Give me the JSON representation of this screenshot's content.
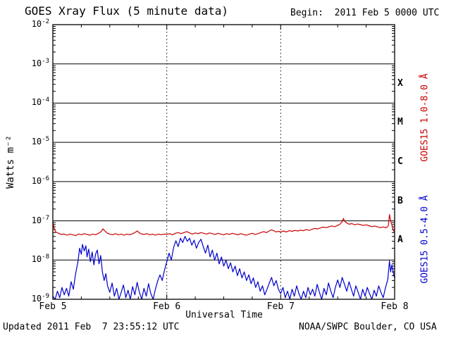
{
  "header": {
    "title": "GOES Xray Flux (5 minute data)",
    "begin_label": "Begin:  2011 Feb 5 0000 UTC"
  },
  "footer": {
    "updated": "Updated 2011 Feb  7 23:55:12 UTC",
    "source": "NOAA/SWPC Boulder, CO USA"
  },
  "chart_data": {
    "type": "line",
    "title": "GOES Xray Flux (5 minute data)",
    "xlabel": "Universal Time",
    "ylabel": "Watts m⁻²",
    "x_epoch": "2011 Feb 5 0000 UTC",
    "x_unit": "days since begin",
    "xlim_days": [
      0,
      3
    ],
    "ylim": [
      1e-09,
      0.01
    ],
    "yscale": "log",
    "xtick_labels": [
      "Feb 5",
      "Feb 6",
      "Feb 7",
      "Feb 8"
    ],
    "xticks_days": [
      0,
      1,
      2,
      3
    ],
    "ytick_exponents": [
      -2,
      -3,
      -4,
      -5,
      -6,
      -7,
      -8,
      -9
    ],
    "grid": {
      "horizontal": "solid lines at each decade",
      "vertical": "dotted lines at day boundaries"
    },
    "legend_position": "right-axis-vertical",
    "flare_classes": [
      {
        "label": "X",
        "log_center": -3.5
      },
      {
        "label": "M",
        "log_center": -4.5
      },
      {
        "label": "C",
        "log_center": -5.5
      },
      {
        "label": "B",
        "log_center": -6.5
      },
      {
        "label": "A",
        "log_center": -7.5
      }
    ],
    "series": [
      {
        "name": "GOES15 1.0-8.0 Å",
        "color": "#cc0000",
        "points": [
          [
            0.0,
            9.5e-08
          ],
          [
            0.01,
            6.5e-08
          ],
          [
            0.025,
            5.2e-08
          ],
          [
            0.05,
            4.8e-08
          ],
          [
            0.075,
            4.5e-08
          ],
          [
            0.1,
            4.6e-08
          ],
          [
            0.125,
            4.3e-08
          ],
          [
            0.15,
            4.6e-08
          ],
          [
            0.175,
            4.4e-08
          ],
          [
            0.2,
            4.2e-08
          ],
          [
            0.225,
            4.6e-08
          ],
          [
            0.25,
            4.4e-08
          ],
          [
            0.275,
            4.7e-08
          ],
          [
            0.3,
            4.5e-08
          ],
          [
            0.325,
            4.3e-08
          ],
          [
            0.35,
            4.6e-08
          ],
          [
            0.375,
            4.4e-08
          ],
          [
            0.4,
            4.8e-08
          ],
          [
            0.42,
            5.2e-08
          ],
          [
            0.44,
            6.2e-08
          ],
          [
            0.46,
            5.4e-08
          ],
          [
            0.48,
            4.8e-08
          ],
          [
            0.5,
            4.6e-08
          ],
          [
            0.525,
            4.4e-08
          ],
          [
            0.55,
            4.7e-08
          ],
          [
            0.575,
            4.4e-08
          ],
          [
            0.6,
            4.6e-08
          ],
          [
            0.625,
            4.3e-08
          ],
          [
            0.65,
            4.6e-08
          ],
          [
            0.675,
            4.4e-08
          ],
          [
            0.7,
            4.7e-08
          ],
          [
            0.72,
            5e-08
          ],
          [
            0.74,
            5.5e-08
          ],
          [
            0.76,
            4.9e-08
          ],
          [
            0.78,
            4.6e-08
          ],
          [
            0.8,
            4.5e-08
          ],
          [
            0.825,
            4.7e-08
          ],
          [
            0.85,
            4.4e-08
          ],
          [
            0.875,
            4.6e-08
          ],
          [
            0.9,
            4.3e-08
          ],
          [
            0.925,
            4.6e-08
          ],
          [
            0.95,
            4.4e-08
          ],
          [
            0.975,
            4.6e-08
          ],
          [
            1.0,
            4.5e-08
          ],
          [
            1.025,
            4.7e-08
          ],
          [
            1.05,
            4.4e-08
          ],
          [
            1.075,
            4.8e-08
          ],
          [
            1.1,
            5e-08
          ],
          [
            1.125,
            4.7e-08
          ],
          [
            1.15,
            5e-08
          ],
          [
            1.175,
            5.3e-08
          ],
          [
            1.2,
            4.9e-08
          ],
          [
            1.225,
            4.6e-08
          ],
          [
            1.25,
            4.9e-08
          ],
          [
            1.275,
            4.7e-08
          ],
          [
            1.3,
            5e-08
          ],
          [
            1.325,
            4.8e-08
          ],
          [
            1.35,
            4.6e-08
          ],
          [
            1.375,
            4.9e-08
          ],
          [
            1.4,
            4.7e-08
          ],
          [
            1.425,
            4.5e-08
          ],
          [
            1.45,
            4.8e-08
          ],
          [
            1.475,
            4.6e-08
          ],
          [
            1.5,
            4.4e-08
          ],
          [
            1.525,
            4.7e-08
          ],
          [
            1.55,
            4.5e-08
          ],
          [
            1.575,
            4.8e-08
          ],
          [
            1.6,
            4.6e-08
          ],
          [
            1.625,
            4.4e-08
          ],
          [
            1.65,
            4.7e-08
          ],
          [
            1.675,
            4.5e-08
          ],
          [
            1.7,
            4.3e-08
          ],
          [
            1.725,
            4.6e-08
          ],
          [
            1.75,
            4.8e-08
          ],
          [
            1.775,
            4.5e-08
          ],
          [
            1.8,
            4.7e-08
          ],
          [
            1.825,
            5e-08
          ],
          [
            1.85,
            5.3e-08
          ],
          [
            1.875,
            5e-08
          ],
          [
            1.9,
            5.5e-08
          ],
          [
            1.92,
            5.9e-08
          ],
          [
            1.94,
            5.6e-08
          ],
          [
            1.96,
            5.2e-08
          ],
          [
            1.98,
            5.4e-08
          ],
          [
            2.0,
            5.2e-08
          ],
          [
            2.025,
            5.5e-08
          ],
          [
            2.05,
            5.2e-08
          ],
          [
            2.075,
            5.6e-08
          ],
          [
            2.1,
            5.4e-08
          ],
          [
            2.125,
            5.7e-08
          ],
          [
            2.15,
            5.5e-08
          ],
          [
            2.175,
            5.8e-08
          ],
          [
            2.2,
            5.6e-08
          ],
          [
            2.225,
            6e-08
          ],
          [
            2.25,
            5.7e-08
          ],
          [
            2.275,
            6.1e-08
          ],
          [
            2.3,
            6.4e-08
          ],
          [
            2.325,
            6.2e-08
          ],
          [
            2.35,
            6.6e-08
          ],
          [
            2.375,
            6.9e-08
          ],
          [
            2.4,
            6.7e-08
          ],
          [
            2.425,
            7.1e-08
          ],
          [
            2.45,
            7.4e-08
          ],
          [
            2.475,
            7.1e-08
          ],
          [
            2.5,
            7.6e-08
          ],
          [
            2.52,
            8.2e-08
          ],
          [
            2.54,
            9.5e-08
          ],
          [
            2.55,
            1.15e-07
          ],
          [
            2.56,
            9.8e-08
          ],
          [
            2.58,
            8.8e-08
          ],
          [
            2.6,
            8.2e-08
          ],
          [
            2.625,
            8.5e-08
          ],
          [
            2.65,
            7.9e-08
          ],
          [
            2.675,
            8.3e-08
          ],
          [
            2.7,
            8e-08
          ],
          [
            2.725,
            7.6e-08
          ],
          [
            2.75,
            7.9e-08
          ],
          [
            2.775,
            7.5e-08
          ],
          [
            2.8,
            7.1e-08
          ],
          [
            2.825,
            7.4e-08
          ],
          [
            2.85,
            7e-08
          ],
          [
            2.875,
            6.7e-08
          ],
          [
            2.9,
            7e-08
          ],
          [
            2.925,
            6.6e-08
          ],
          [
            2.945,
            7.5e-08
          ],
          [
            2.955,
            1.45e-07
          ],
          [
            2.965,
            1e-07
          ],
          [
            2.975,
            8e-08
          ],
          [
            2.985,
            6e-08
          ],
          [
            3.0,
            5e-08
          ]
        ]
      },
      {
        "name": "GOES15 0.5-4.0 Å",
        "color": "#0000cc",
        "points": [
          [
            0.0,
            1.2e-09
          ],
          [
            0.02,
            1e-09
          ],
          [
            0.04,
            1.6e-09
          ],
          [
            0.06,
            1.1e-09
          ],
          [
            0.08,
            2e-09
          ],
          [
            0.1,
            1.3e-09
          ],
          [
            0.12,
            1.9e-09
          ],
          [
            0.14,
            1.2e-09
          ],
          [
            0.16,
            2.8e-09
          ],
          [
            0.18,
            1.8e-09
          ],
          [
            0.2,
            4.5e-09
          ],
          [
            0.22,
            9e-09
          ],
          [
            0.235,
            2e-08
          ],
          [
            0.25,
            1.4e-08
          ],
          [
            0.26,
            2.5e-08
          ],
          [
            0.275,
            1.7e-08
          ],
          [
            0.29,
            2.3e-08
          ],
          [
            0.3,
            1.2e-08
          ],
          [
            0.315,
            1.9e-08
          ],
          [
            0.33,
            9e-09
          ],
          [
            0.345,
            1.6e-08
          ],
          [
            0.36,
            7.5e-09
          ],
          [
            0.375,
            1.4e-08
          ],
          [
            0.39,
            1.8e-08
          ],
          [
            0.405,
            8e-09
          ],
          [
            0.42,
            1.3e-08
          ],
          [
            0.435,
            5e-09
          ],
          [
            0.45,
            3e-09
          ],
          [
            0.465,
            4.5e-09
          ],
          [
            0.48,
            2.2e-09
          ],
          [
            0.5,
            1.5e-09
          ],
          [
            0.52,
            2.6e-09
          ],
          [
            0.54,
            1.2e-09
          ],
          [
            0.56,
            1.9e-09
          ],
          [
            0.58,
            1e-09
          ],
          [
            0.6,
            1.5e-09
          ],
          [
            0.62,
            2.3e-09
          ],
          [
            0.64,
            1.1e-09
          ],
          [
            0.66,
            1.7e-09
          ],
          [
            0.68,
            1e-09
          ],
          [
            0.7,
            2.1e-09
          ],
          [
            0.72,
            1.3e-09
          ],
          [
            0.74,
            2.7e-09
          ],
          [
            0.76,
            1.5e-09
          ],
          [
            0.78,
            1e-09
          ],
          [
            0.8,
            1.9e-09
          ],
          [
            0.82,
            1.2e-09
          ],
          [
            0.84,
            2.5e-09
          ],
          [
            0.86,
            1.4e-09
          ],
          [
            0.88,
            1e-09
          ],
          [
            0.9,
            1.8e-09
          ],
          [
            0.92,
            2.9e-09
          ],
          [
            0.94,
            4.2e-09
          ],
          [
            0.96,
            3e-09
          ],
          [
            0.98,
            5.5e-09
          ],
          [
            1.0,
            9e-09
          ],
          [
            1.02,
            1.5e-08
          ],
          [
            1.04,
            1e-08
          ],
          [
            1.06,
            2.1e-08
          ],
          [
            1.08,
            3.1e-08
          ],
          [
            1.1,
            2.2e-08
          ],
          [
            1.12,
            3.6e-08
          ],
          [
            1.14,
            2.8e-08
          ],
          [
            1.16,
            4e-08
          ],
          [
            1.18,
            3e-08
          ],
          [
            1.2,
            3.6e-08
          ],
          [
            1.22,
            2.4e-08
          ],
          [
            1.24,
            3.2e-08
          ],
          [
            1.26,
            2e-08
          ],
          [
            1.28,
            2.8e-08
          ],
          [
            1.3,
            3.4e-08
          ],
          [
            1.32,
            2.2e-08
          ],
          [
            1.34,
            1.5e-08
          ],
          [
            1.36,
            2.4e-08
          ],
          [
            1.38,
            1.2e-08
          ],
          [
            1.4,
            1.8e-08
          ],
          [
            1.42,
            1e-08
          ],
          [
            1.44,
            1.5e-08
          ],
          [
            1.46,
            8e-09
          ],
          [
            1.48,
            1.2e-08
          ],
          [
            1.5,
            7e-09
          ],
          [
            1.52,
            1e-08
          ],
          [
            1.54,
            6e-09
          ],
          [
            1.56,
            8.5e-09
          ],
          [
            1.58,
            5e-09
          ],
          [
            1.6,
            7e-09
          ],
          [
            1.62,
            4e-09
          ],
          [
            1.64,
            6e-09
          ],
          [
            1.66,
            3.5e-09
          ],
          [
            1.68,
            5e-09
          ],
          [
            1.7,
            3e-09
          ],
          [
            1.72,
            4.2e-09
          ],
          [
            1.74,
            2.5e-09
          ],
          [
            1.76,
            3.5e-09
          ],
          [
            1.78,
            2e-09
          ],
          [
            1.8,
            2.8e-09
          ],
          [
            1.82,
            1.6e-09
          ],
          [
            1.84,
            2.2e-09
          ],
          [
            1.86,
            1.3e-09
          ],
          [
            1.88,
            1.8e-09
          ],
          [
            1.9,
            2.6e-09
          ],
          [
            1.92,
            3.6e-09
          ],
          [
            1.94,
            2.2e-09
          ],
          [
            1.96,
            3e-09
          ],
          [
            1.98,
            1.8e-09
          ],
          [
            2.0,
            1.4e-09
          ],
          [
            2.02,
            2e-09
          ],
          [
            2.04,
            1.1e-09
          ],
          [
            2.06,
            1.6e-09
          ],
          [
            2.08,
            1e-09
          ],
          [
            2.1,
            1.8e-09
          ],
          [
            2.12,
            1.2e-09
          ],
          [
            2.14,
            2.2e-09
          ],
          [
            2.16,
            1.4e-09
          ],
          [
            2.18,
            1e-09
          ],
          [
            2.2,
            1.6e-09
          ],
          [
            2.22,
            1.1e-09
          ],
          [
            2.24,
            2e-09
          ],
          [
            2.26,
            1.3e-09
          ],
          [
            2.28,
            1.8e-09
          ],
          [
            2.3,
            1.2e-09
          ],
          [
            2.32,
            2.4e-09
          ],
          [
            2.34,
            1.5e-09
          ],
          [
            2.36,
            1e-09
          ],
          [
            2.38,
            1.9e-09
          ],
          [
            2.4,
            1.3e-09
          ],
          [
            2.42,
            2.6e-09
          ],
          [
            2.44,
            1.6e-09
          ],
          [
            2.46,
            1.1e-09
          ],
          [
            2.48,
            2e-09
          ],
          [
            2.5,
            3.1e-09
          ],
          [
            2.52,
            2e-09
          ],
          [
            2.54,
            3.6e-09
          ],
          [
            2.56,
            2.4e-09
          ],
          [
            2.58,
            1.6e-09
          ],
          [
            2.6,
            2.8e-09
          ],
          [
            2.62,
            1.8e-09
          ],
          [
            2.64,
            1.2e-09
          ],
          [
            2.66,
            2.2e-09
          ],
          [
            2.68,
            1.5e-09
          ],
          [
            2.7,
            1e-09
          ],
          [
            2.72,
            1.8e-09
          ],
          [
            2.74,
            1.2e-09
          ],
          [
            2.76,
            2e-09
          ],
          [
            2.78,
            1.4e-09
          ],
          [
            2.8,
            1e-09
          ],
          [
            2.82,
            1.7e-09
          ],
          [
            2.84,
            1.2e-09
          ],
          [
            2.86,
            2.2e-09
          ],
          [
            2.88,
            1.5e-09
          ],
          [
            2.9,
            1.1e-09
          ],
          [
            2.92,
            2e-09
          ],
          [
            2.94,
            3.2e-09
          ],
          [
            2.955,
            9.5e-09
          ],
          [
            2.965,
            5e-09
          ],
          [
            2.975,
            7.5e-09
          ],
          [
            2.99,
            4.5e-09
          ],
          [
            3.0,
            3.5e-09
          ]
        ]
      }
    ]
  }
}
